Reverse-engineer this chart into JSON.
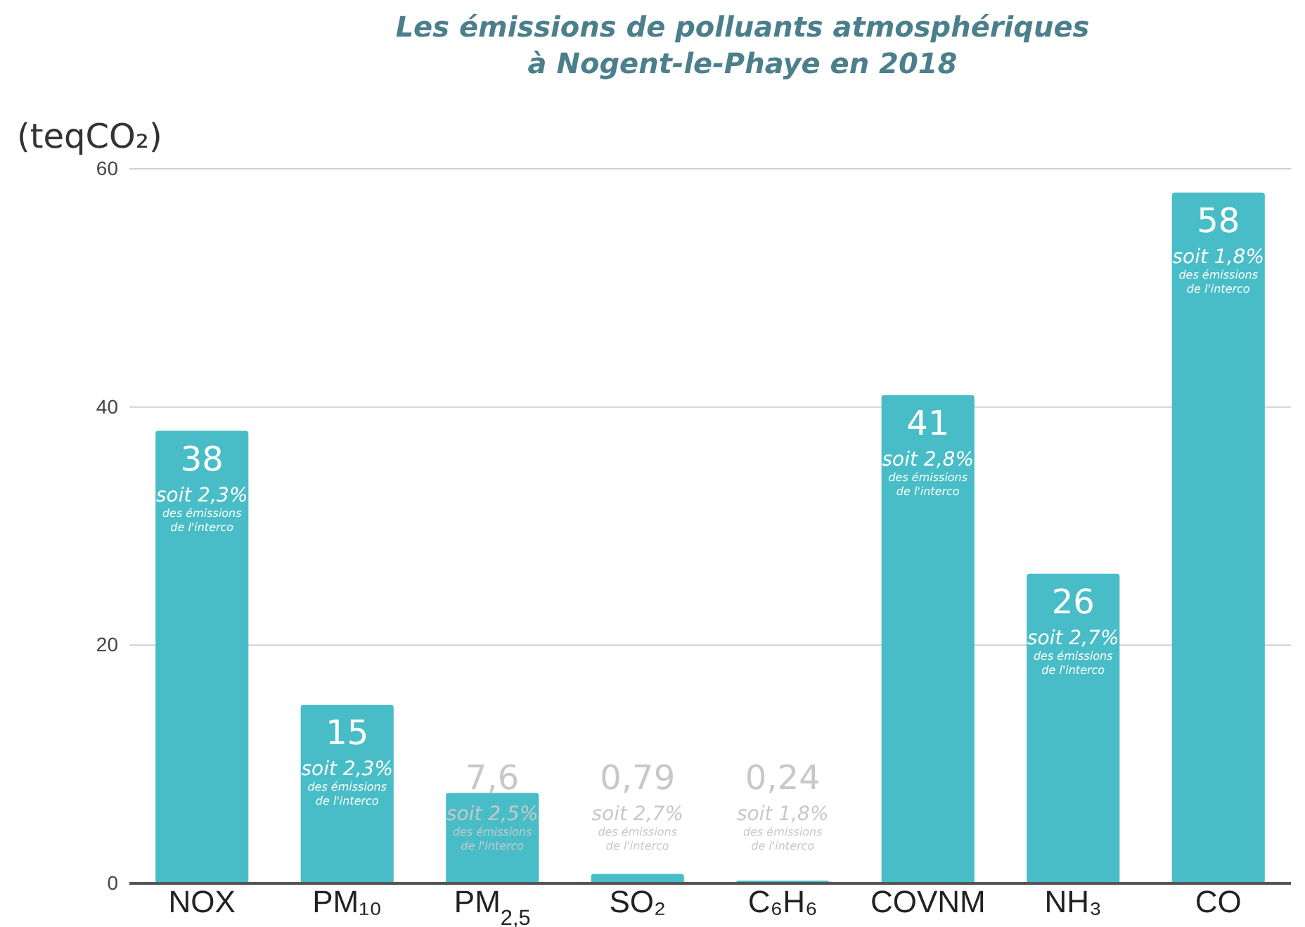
{
  "chart_data": {
    "type": "bar",
    "title": "Les émissions de polluants atmosphériques\nà Nogent-le-Phaye en 2018",
    "ylabel": "(teqCO₂)",
    "categories": [
      "NOX",
      "PM₁₀",
      "PM$_{2,5}$",
      "SO₂",
      "C₆H₆",
      "COVNM",
      "NH₃",
      "CO"
    ],
    "values": [
      38,
      15,
      7.6,
      0.79,
      0.24,
      41,
      26,
      58
    ],
    "value_labels": [
      "38",
      "15",
      "7,6",
      "0,79",
      "0,24",
      "41",
      "26",
      "58"
    ],
    "color": "#48bdc7",
    "ylim": [
      0,
      60
    ],
    "yticks": [
      0,
      20,
      40,
      60
    ],
    "grid": "y",
    "annotations": [
      "soit 2,3%",
      "des émissions de l'interco",
      "soit 2,3%",
      "des émissions de l'interco",
      "soit 2,5%",
      "des émissions de l'interco",
      "soit 2,7%",
      "des émissions de l'interco",
      "soit 1,8%",
      "des émissions de l'interco",
      "soit 2,8%",
      "des émissions de l'interco",
      "soit 2,7%",
      "des émissions de l'interco",
      "soit 1,8%",
      "des émissions de l'interco"
    ]
  }
}
